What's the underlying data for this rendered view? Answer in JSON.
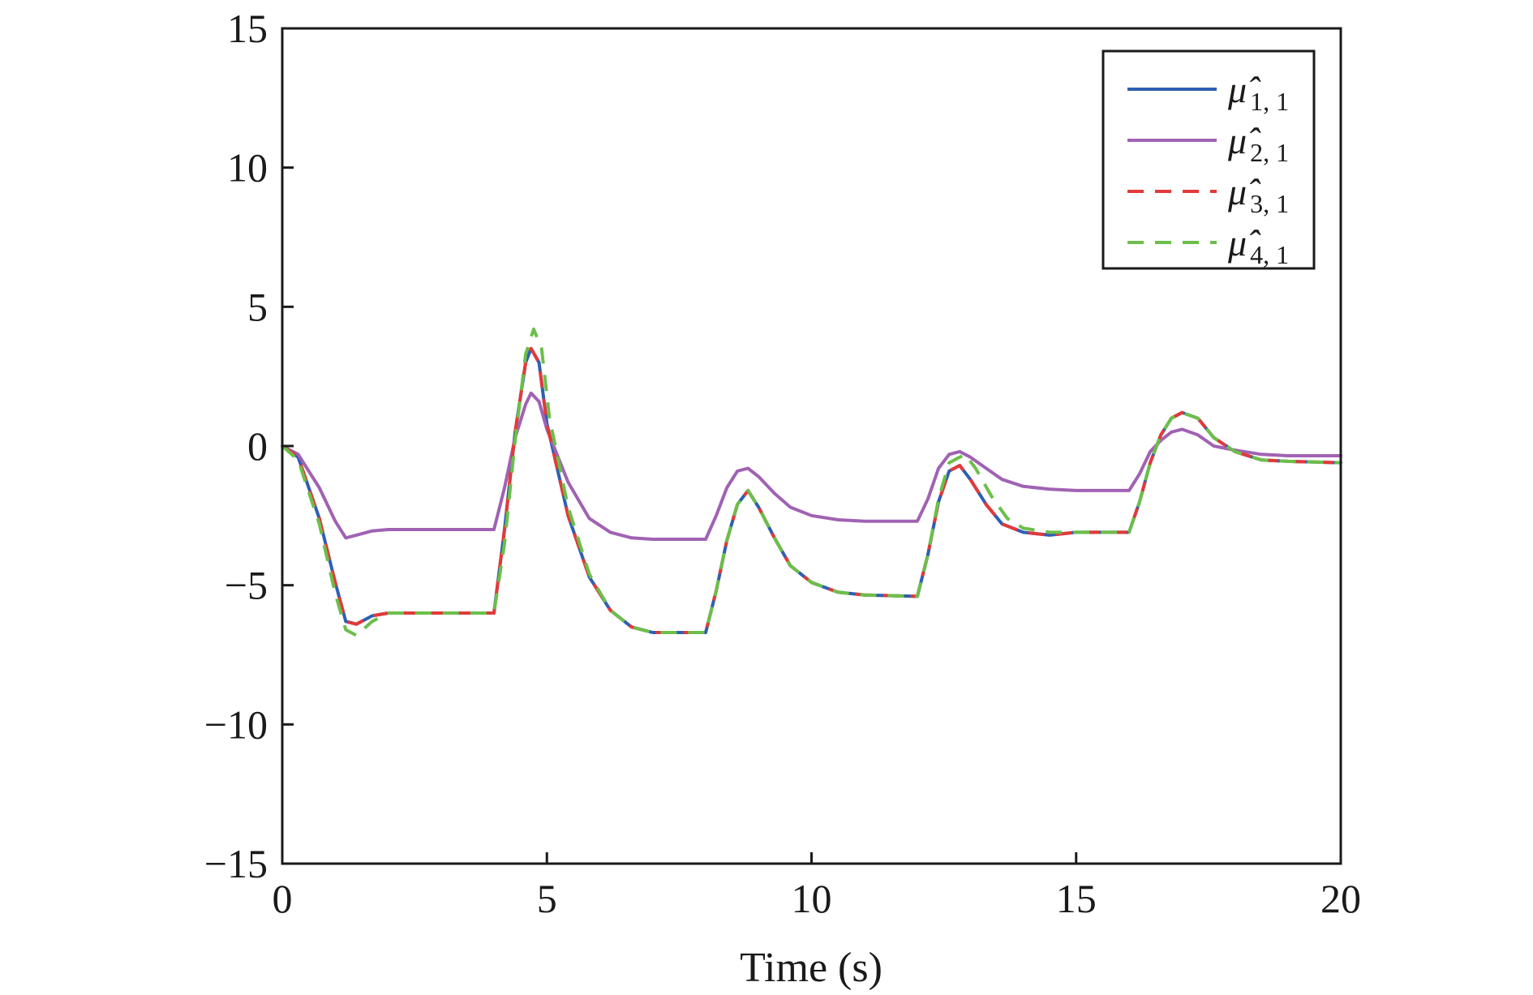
{
  "chart_data": {
    "type": "line",
    "title": "",
    "xlabel": "Time (s)",
    "ylabel": "",
    "xlim": [
      0,
      20
    ],
    "ylim": [
      -15,
      15
    ],
    "xticks": [
      0,
      5,
      10,
      15,
      20
    ],
    "yticks": [
      -15,
      -10,
      -5,
      0,
      5,
      10,
      15
    ],
    "xtick_labels": [
      "0",
      "5",
      "10",
      "15",
      "20"
    ],
    "ytick_labels": [
      "−15",
      "−10",
      "−5",
      "0",
      "5",
      "10",
      "15"
    ],
    "grid": false,
    "legend_position": "top-right",
    "series": [
      {
        "name": "μ̂",
        "subscript": "1, 1",
        "color": "#2f5fb3",
        "dash": "solid",
        "x": [
          0,
          0.3,
          0.7,
          1.0,
          1.2,
          1.4,
          1.7,
          2.0,
          3.0,
          4.0,
          4.2,
          4.4,
          4.6,
          4.7,
          4.85,
          5.0,
          5.4,
          5.8,
          6.2,
          6.6,
          7.0,
          8.0,
          8.2,
          8.4,
          8.6,
          8.8,
          9.0,
          9.3,
          9.6,
          10.0,
          10.5,
          11.0,
          12.0,
          12.2,
          12.4,
          12.6,
          12.8,
          13.0,
          13.3,
          13.6,
          14.0,
          14.5,
          15.0,
          16.0,
          16.2,
          16.4,
          16.6,
          16.8,
          17.0,
          17.3,
          17.6,
          18.0,
          18.5,
          19.0,
          20.0
        ],
        "y": [
          0.0,
          -0.4,
          -2.6,
          -4.9,
          -6.3,
          -6.4,
          -6.1,
          -6.0,
          -6.0,
          -6.0,
          -3.0,
          0.5,
          3.0,
          3.5,
          3.0,
          0.8,
          -2.5,
          -4.7,
          -5.9,
          -6.5,
          -6.7,
          -6.7,
          -5.2,
          -3.4,
          -2.1,
          -1.6,
          -2.2,
          -3.3,
          -4.3,
          -4.9,
          -5.25,
          -5.35,
          -5.4,
          -3.9,
          -2.0,
          -0.9,
          -0.7,
          -1.2,
          -2.1,
          -2.8,
          -3.1,
          -3.2,
          -3.1,
          -3.1,
          -2.0,
          -0.6,
          0.4,
          1.0,
          1.2,
          1.0,
          0.3,
          -0.2,
          -0.5,
          -0.55,
          -0.6
        ]
      },
      {
        "name": "μ̂",
        "subscript": "2, 1",
        "color": "#a062b3",
        "dash": "solid",
        "x": [
          0,
          0.3,
          0.7,
          1.0,
          1.2,
          1.4,
          1.7,
          2.0,
          3.0,
          4.0,
          4.2,
          4.4,
          4.6,
          4.7,
          4.85,
          5.0,
          5.4,
          5.8,
          6.2,
          6.6,
          7.0,
          8.0,
          8.2,
          8.4,
          8.6,
          8.8,
          9.0,
          9.3,
          9.6,
          10.0,
          10.5,
          11.0,
          12.0,
          12.2,
          12.4,
          12.6,
          12.8,
          13.0,
          13.3,
          13.6,
          14.0,
          14.5,
          15.0,
          16.0,
          16.2,
          16.4,
          16.6,
          16.8,
          17.0,
          17.3,
          17.6,
          18.0,
          18.5,
          19.0,
          20.0
        ],
        "y": [
          0.0,
          -0.3,
          -1.5,
          -2.7,
          -3.3,
          -3.2,
          -3.05,
          -3.0,
          -3.0,
          -3.0,
          -1.5,
          0.3,
          1.5,
          1.9,
          1.6,
          0.6,
          -1.3,
          -2.6,
          -3.1,
          -3.3,
          -3.35,
          -3.35,
          -2.5,
          -1.5,
          -0.9,
          -0.8,
          -1.1,
          -1.7,
          -2.2,
          -2.5,
          -2.65,
          -2.7,
          -2.7,
          -1.9,
          -0.8,
          -0.3,
          -0.2,
          -0.4,
          -0.8,
          -1.2,
          -1.45,
          -1.55,
          -1.6,
          -1.6,
          -1.0,
          -0.2,
          0.2,
          0.5,
          0.6,
          0.4,
          0.0,
          -0.15,
          -0.3,
          -0.35,
          -0.35
        ]
      },
      {
        "name": "μ̂",
        "subscript": "3, 1",
        "color": "#e23a3a",
        "dash": "dashed",
        "x": [
          0,
          0.3,
          0.7,
          1.0,
          1.2,
          1.4,
          1.7,
          2.0,
          3.0,
          4.0,
          4.2,
          4.4,
          4.6,
          4.7,
          4.85,
          5.0,
          5.4,
          5.8,
          6.2,
          6.6,
          7.0,
          8.0,
          8.2,
          8.4,
          8.6,
          8.8,
          9.0,
          9.3,
          9.6,
          10.0,
          10.5,
          11.0,
          12.0,
          12.2,
          12.4,
          12.6,
          12.8,
          13.0,
          13.3,
          13.6,
          14.0,
          14.5,
          15.0,
          16.0,
          16.2,
          16.4,
          16.6,
          16.8,
          17.0,
          17.3,
          17.6,
          18.0,
          18.5,
          19.0,
          20.0
        ],
        "y": [
          0.0,
          -0.4,
          -2.6,
          -4.9,
          -6.3,
          -6.4,
          -6.1,
          -6.0,
          -6.0,
          -6.0,
          -3.0,
          0.5,
          3.0,
          3.5,
          3.0,
          0.8,
          -2.5,
          -4.7,
          -5.9,
          -6.5,
          -6.7,
          -6.7,
          -5.2,
          -3.4,
          -2.1,
          -1.6,
          -2.2,
          -3.3,
          -4.3,
          -4.9,
          -5.25,
          -5.35,
          -5.4,
          -3.9,
          -2.0,
          -0.9,
          -0.7,
          -1.2,
          -2.1,
          -2.8,
          -3.1,
          -3.2,
          -3.1,
          -3.1,
          -2.0,
          -0.6,
          0.4,
          1.0,
          1.2,
          1.0,
          0.3,
          -0.2,
          -0.5,
          -0.55,
          -0.6
        ]
      },
      {
        "name": "μ̂",
        "subscript": "4, 1",
        "color": "#6cbf4a",
        "dash": "dashed",
        "x": [
          0,
          0.3,
          0.7,
          1.0,
          1.2,
          1.4,
          1.7,
          2.0,
          3.0,
          4.0,
          4.2,
          4.4,
          4.6,
          4.75,
          4.9,
          5.05,
          5.4,
          5.8,
          6.2,
          6.6,
          7.0,
          8.0,
          8.2,
          8.4,
          8.6,
          8.8,
          9.0,
          9.3,
          9.6,
          10.0,
          10.5,
          11.0,
          12.0,
          12.2,
          12.4,
          12.6,
          12.9,
          13.1,
          13.4,
          13.7,
          14.0,
          14.5,
          15.0,
          16.0,
          16.2,
          16.4,
          16.6,
          16.8,
          17.0,
          17.3,
          17.6,
          18.0,
          18.5,
          19.0,
          20.0
        ],
        "y": [
          0.0,
          -0.5,
          -2.8,
          -5.3,
          -6.6,
          -6.8,
          -6.3,
          -6.0,
          -6.0,
          -6.0,
          -3.5,
          0.2,
          3.3,
          4.2,
          3.5,
          1.0,
          -2.2,
          -4.6,
          -5.9,
          -6.5,
          -6.7,
          -6.7,
          -5.2,
          -3.4,
          -2.1,
          -1.6,
          -2.2,
          -3.3,
          -4.3,
          -4.9,
          -5.25,
          -5.35,
          -5.4,
          -3.9,
          -1.9,
          -0.6,
          -0.3,
          -0.8,
          -1.8,
          -2.6,
          -2.95,
          -3.1,
          -3.1,
          -3.1,
          -2.0,
          -0.6,
          0.4,
          1.0,
          1.2,
          1.0,
          0.3,
          -0.2,
          -0.5,
          -0.55,
          -0.6
        ]
      }
    ]
  }
}
